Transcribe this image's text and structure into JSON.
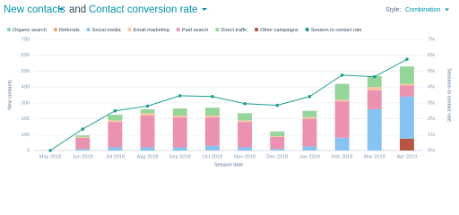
{
  "controls": {
    "metric1": "New contacts",
    "joiner": "and",
    "metric2": "Contact conversion rate",
    "style_label": "Style:",
    "style_value": "Combination"
  },
  "chart_data": {
    "type": "bar",
    "stacked": true,
    "x_label": "Session date",
    "y_label": "New contacts",
    "y2_label": "Sessions to contact rate",
    "categories": [
      "May 2018",
      "Jun 2018",
      "Jul 2018",
      "Aug 2018",
      "Sep 2018",
      "Oct 2018",
      "Nov 2018",
      "Dec 2018",
      "Jan 2019",
      "Feb 2019",
      "Mar 2019",
      "Apr 2019"
    ],
    "series": [
      {
        "name": "Organic search",
        "color": "#81d4c6",
        "values": [
          0,
          0,
          0,
          0,
          0,
          0,
          0,
          0,
          0,
          0,
          0,
          0
        ]
      },
      {
        "name": "Referrals",
        "color": "#f5a85e",
        "values": [
          0,
          0,
          0,
          0,
          0,
          0,
          0,
          0,
          0,
          0,
          0,
          0
        ]
      },
      {
        "name": "Social media",
        "color": "#86c3f2",
        "values": [
          0,
          10,
          20,
          20,
          20,
          30,
          20,
          10,
          25,
          80,
          260,
          265
        ]
      },
      {
        "name": "Email marketing",
        "color": "#f7c8a0",
        "values": [
          0,
          5,
          10,
          15,
          10,
          10,
          10,
          5,
          10,
          10,
          20,
          10
        ]
      },
      {
        "name": "Paid search",
        "color": "#ea92b0",
        "values": [
          0,
          70,
          160,
          200,
          190,
          180,
          160,
          75,
          175,
          230,
          120,
          70
        ]
      },
      {
        "name": "Direct traffic",
        "color": "#96d59a",
        "values": [
          0,
          10,
          35,
          25,
          45,
          50,
          45,
          30,
          40,
          100,
          70,
          110
        ]
      },
      {
        "name": "Other campaigns",
        "color": "#b8553f",
        "values": [
          0,
          0,
          0,
          0,
          0,
          0,
          0,
          0,
          0,
          0,
          0,
          75
        ]
      },
      {
        "name": "Session to contact rate",
        "color": "#1f9e91",
        "type": "line",
        "axis": "y2",
        "values": [
          0,
          1.35,
          2.5,
          2.8,
          3.45,
          3.4,
          2.95,
          2.85,
          3.4,
          4.75,
          4.65,
          5.75
        ]
      }
    ],
    "ylim": [
      0,
      700
    ],
    "yticks": [
      0,
      100,
      200,
      300,
      400,
      500,
      600,
      700
    ],
    "y2lim": [
      0,
      7
    ],
    "y2ticks": [
      {
        "value": 0,
        "label": "0%"
      },
      {
        "value": 1,
        "label": "1%"
      },
      {
        "value": 2,
        "label": "2%"
      },
      {
        "value": 3,
        "label": "3%"
      },
      {
        "value": 4,
        "label": "4%"
      },
      {
        "value": 5,
        "label": "5%"
      },
      {
        "value": 6,
        "label": "6%"
      },
      {
        "value": 7,
        "label": "7%"
      }
    ],
    "grid": true,
    "legend": "top"
  }
}
